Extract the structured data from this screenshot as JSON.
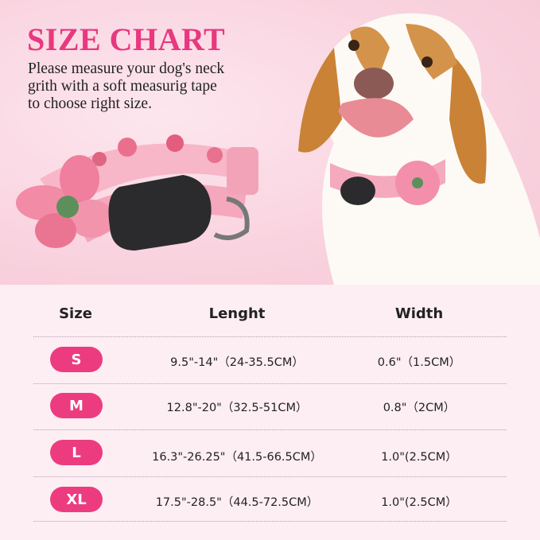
{
  "title": "SIZE CHART",
  "description": [
    "Please measure your dog's neck",
    "grith with a soft measurig tape",
    "to choose right size."
  ],
  "colors": {
    "accent": "#e8387f",
    "pill": "#ec3c7f",
    "table_bg": "#fdeef4"
  },
  "table": {
    "headers": [
      "Size",
      "Lenght",
      "Width"
    ],
    "rows": [
      {
        "size": "S",
        "length": "9.5\"-14\"（24-35.5CM）",
        "width": "0.6\"（1.5CM）"
      },
      {
        "size": "M",
        "length": "12.8\"-20\"（32.5-51CM）",
        "width": "0.8\"（2CM）"
      },
      {
        "size": "L",
        "length": "16.3\"-26.25\"（41.5-66.5CM）",
        "width": "1.0\"(2.5CM）"
      },
      {
        "size": "XL",
        "length": "17.5\"-28.5\"（44.5-72.5CM）",
        "width": "1.0\"(2.5CM）"
      }
    ]
  }
}
